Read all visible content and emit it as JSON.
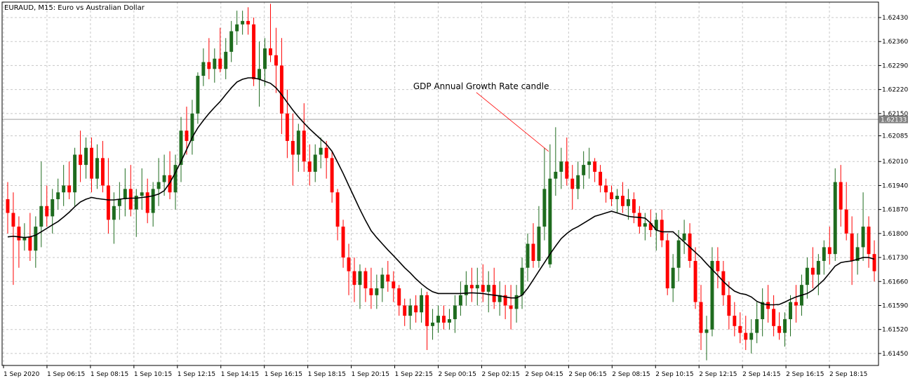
{
  "chart_data": {
    "type": "candlestick",
    "title": "EURAUD, M15:  Euro vs Australian Dollar",
    "colors": {
      "bull": "#1e6b1e",
      "bear": "#ff0000",
      "ma": "#000000",
      "grid": "#c8c8c8",
      "price_line": "#a0a0a0",
      "badge": "#808080"
    },
    "ylim": [
      1.61415,
      1.62475
    ],
    "y_ticks": [
      "1.62430",
      "1.62360",
      "1.62290",
      "1.62220",
      "1.62150",
      "1.62085",
      "1.62010",
      "1.61940",
      "1.61870",
      "1.61800",
      "1.61730",
      "1.61660",
      "1.61590",
      "1.61520",
      "1.61450"
    ],
    "x_ticks": [
      "1 Sep 2020",
      "1 Sep 06:15",
      "1 Sep 08:15",
      "1 Sep 10:15",
      "1 Sep 12:15",
      "1 Sep 14:15",
      "1 Sep 16:15",
      "1 Sep 18:15",
      "1 Sep 20:15",
      "1 Sep 22:15",
      "2 Sep 00:15",
      "2 Sep 02:15",
      "2 Sep 04:15",
      "2 Sep 06:15",
      "2 Sep 08:15",
      "2 Sep 10:15",
      "2 Sep 12:15",
      "2 Sep 14:15",
      "2 Sep 16:15",
      "2 Sep 18:15"
    ],
    "current_price": "1.62133",
    "current_price_value": 1.62133,
    "annotation": {
      "text": "GDP Annual Growth Rate candle",
      "candle_index": 97
    },
    "candles": [
      [
        1.619,
        1.6195,
        1.618,
        1.6186
      ],
      [
        1.6186,
        1.6192,
        1.6165,
        1.6182
      ],
      [
        1.6182,
        1.6185,
        1.617,
        1.6178
      ],
      [
        1.6178,
        1.6183,
        1.6175,
        1.6179
      ],
      [
        1.6179,
        1.6186,
        1.6172,
        1.6175
      ],
      [
        1.6175,
        1.6185,
        1.617,
        1.6182
      ],
      [
        1.6182,
        1.6201,
        1.6176,
        1.6188
      ],
      [
        1.6188,
        1.6194,
        1.6182,
        1.6185
      ],
      [
        1.6185,
        1.6193,
        1.618,
        1.619
      ],
      [
        1.619,
        1.6196,
        1.6187,
        1.6192
      ],
      [
        1.6192,
        1.62,
        1.6188,
        1.6194
      ],
      [
        1.6194,
        1.6201,
        1.619,
        1.6192
      ],
      [
        1.6192,
        1.6205,
        1.6188,
        1.6203
      ],
      [
        1.6203,
        1.621,
        1.6195,
        1.62
      ],
      [
        1.62,
        1.6208,
        1.6196,
        1.6205
      ],
      [
        1.6205,
        1.6208,
        1.6192,
        1.6196
      ],
      [
        1.6196,
        1.6206,
        1.6193,
        1.6202
      ],
      [
        1.6202,
        1.6207,
        1.6192,
        1.6194
      ],
      [
        1.6194,
        1.6202,
        1.618,
        1.6184
      ],
      [
        1.6184,
        1.6192,
        1.6177,
        1.6188
      ],
      [
        1.6188,
        1.6195,
        1.6184,
        1.619
      ],
      [
        1.619,
        1.6199,
        1.6185,
        1.6193
      ],
      [
        1.6193,
        1.62,
        1.6185,
        1.6187
      ],
      [
        1.6187,
        1.6193,
        1.6179,
        1.6191
      ],
      [
        1.6191,
        1.6199,
        1.6187,
        1.6192
      ],
      [
        1.6192,
        1.6196,
        1.6183,
        1.6186
      ],
      [
        1.6186,
        1.6195,
        1.6182,
        1.6193
      ],
      [
        1.6193,
        1.6202,
        1.6188,
        1.6195
      ],
      [
        1.6195,
        1.6203,
        1.6191,
        1.6197
      ],
      [
        1.6197,
        1.6204,
        1.619,
        1.6192
      ],
      [
        1.6192,
        1.6203,
        1.6187,
        1.62
      ],
      [
        1.62,
        1.6214,
        1.6195,
        1.621
      ],
      [
        1.621,
        1.6217,
        1.6203,
        1.6207
      ],
      [
        1.6207,
        1.6219,
        1.6203,
        1.6215
      ],
      [
        1.6215,
        1.6227,
        1.6212,
        1.6226
      ],
      [
        1.6226,
        1.6234,
        1.6223,
        1.623
      ],
      [
        1.623,
        1.6237,
        1.6225,
        1.6228
      ],
      [
        1.6228,
        1.6234,
        1.6224,
        1.6231
      ],
      [
        1.6231,
        1.624,
        1.6227,
        1.6228
      ],
      [
        1.6228,
        1.6237,
        1.6225,
        1.6233
      ],
      [
        1.6233,
        1.6242,
        1.623,
        1.6239
      ],
      [
        1.6239,
        1.6245,
        1.6235,
        1.6241
      ],
      [
        1.6241,
        1.6245,
        1.6238,
        1.6242
      ],
      [
        1.6242,
        1.6246,
        1.6238,
        1.6241
      ],
      [
        1.6241,
        1.6243,
        1.6223,
        1.6225
      ],
      [
        1.6225,
        1.6236,
        1.6217,
        1.6228
      ],
      [
        1.6228,
        1.6237,
        1.6223,
        1.6234
      ],
      [
        1.6234,
        1.6247,
        1.623,
        1.6232
      ],
      [
        1.6232,
        1.624,
        1.6221,
        1.6229
      ],
      [
        1.6229,
        1.6237,
        1.6209,
        1.6215
      ],
      [
        1.6215,
        1.6222,
        1.6202,
        1.6207
      ],
      [
        1.6207,
        1.6215,
        1.6194,
        1.6203
      ],
      [
        1.6203,
        1.6212,
        1.6198,
        1.621
      ],
      [
        1.621,
        1.6218,
        1.6198,
        1.6201
      ],
      [
        1.6201,
        1.6206,
        1.6194,
        1.6198
      ],
      [
        1.6198,
        1.6206,
        1.6195,
        1.6203
      ],
      [
        1.6203,
        1.6208,
        1.6199,
        1.6205
      ],
      [
        1.6205,
        1.6207,
        1.6196,
        1.6202
      ],
      [
        1.6202,
        1.6204,
        1.6189,
        1.6192
      ],
      [
        1.6192,
        1.6193,
        1.6178,
        1.6182
      ],
      [
        1.6182,
        1.6184,
        1.617,
        1.6173
      ],
      [
        1.6173,
        1.6177,
        1.6162,
        1.6169
      ],
      [
        1.6169,
        1.6173,
        1.616,
        1.6165
      ],
      [
        1.6165,
        1.6171,
        1.6158,
        1.6169
      ],
      [
        1.6169,
        1.617,
        1.616,
        1.6164
      ],
      [
        1.6164,
        1.617,
        1.6158,
        1.6162
      ],
      [
        1.6162,
        1.6168,
        1.6158,
        1.6164
      ],
      [
        1.6164,
        1.617,
        1.616,
        1.6168
      ],
      [
        1.6168,
        1.6172,
        1.6163,
        1.6166
      ],
      [
        1.6166,
        1.6169,
        1.616,
        1.6164
      ],
      [
        1.6164,
        1.6165,
        1.6156,
        1.6159
      ],
      [
        1.6159,
        1.6161,
        1.6153,
        1.6156
      ],
      [
        1.6156,
        1.6161,
        1.6152,
        1.6159
      ],
      [
        1.6159,
        1.6162,
        1.6154,
        1.6157
      ],
      [
        1.6157,
        1.6164,
        1.6154,
        1.6162
      ],
      [
        1.6162,
        1.6163,
        1.6146,
        1.6153
      ],
      [
        1.6153,
        1.6158,
        1.6149,
        1.6154
      ],
      [
        1.6154,
        1.6159,
        1.6151,
        1.6156
      ],
      [
        1.6156,
        1.6159,
        1.6152,
        1.6154
      ],
      [
        1.6154,
        1.6158,
        1.6152,
        1.6155
      ],
      [
        1.6155,
        1.6162,
        1.6151,
        1.6159
      ],
      [
        1.6159,
        1.6166,
        1.6156,
        1.6162
      ],
      [
        1.6162,
        1.6169,
        1.6159,
        1.6165
      ],
      [
        1.6165,
        1.617,
        1.616,
        1.6164
      ],
      [
        1.6164,
        1.617,
        1.6159,
        1.6165
      ],
      [
        1.6165,
        1.6171,
        1.616,
        1.6163
      ],
      [
        1.6163,
        1.6169,
        1.6157,
        1.6165
      ],
      [
        1.6165,
        1.617,
        1.6158,
        1.616
      ],
      [
        1.616,
        1.6166,
        1.6156,
        1.6162
      ],
      [
        1.6162,
        1.6165,
        1.6155,
        1.6159
      ],
      [
        1.6159,
        1.6165,
        1.6152,
        1.6158
      ],
      [
        1.6158,
        1.6165,
        1.6154,
        1.6162
      ],
      [
        1.6162,
        1.6173,
        1.6158,
        1.617
      ],
      [
        1.617,
        1.618,
        1.6166,
        1.6177
      ],
      [
        1.6177,
        1.6183,
        1.617,
        1.6172
      ],
      [
        1.6172,
        1.6188,
        1.617,
        1.6182
      ],
      [
        1.6182,
        1.6205,
        1.6178,
        1.6193
      ],
      [
        1.6171,
        1.6206,
        1.617,
        1.6196
      ],
      [
        1.6196,
        1.6211,
        1.6191,
        1.6198
      ],
      [
        1.6198,
        1.6205,
        1.6193,
        1.6201
      ],
      [
        1.6201,
        1.6208,
        1.6194,
        1.6196
      ],
      [
        1.6196,
        1.62,
        1.6187,
        1.6193
      ],
      [
        1.6193,
        1.6201,
        1.619,
        1.6197
      ],
      [
        1.6197,
        1.6204,
        1.6193,
        1.62
      ],
      [
        1.62,
        1.6205,
        1.6196,
        1.6201
      ],
      [
        1.6201,
        1.6202,
        1.6195,
        1.6198
      ],
      [
        1.6198,
        1.62,
        1.6192,
        1.6194
      ],
      [
        1.6194,
        1.6196,
        1.6189,
        1.6192
      ],
      [
        1.6192,
        1.6194,
        1.6188,
        1.619
      ],
      [
        1.619,
        1.6193,
        1.6186,
        1.6191
      ],
      [
        1.6191,
        1.6195,
        1.6186,
        1.6188
      ],
      [
        1.6188,
        1.6193,
        1.6184,
        1.619
      ],
      [
        1.619,
        1.6192,
        1.6183,
        1.6186
      ],
      [
        1.6186,
        1.6188,
        1.618,
        1.6182
      ],
      [
        1.6182,
        1.6186,
        1.6178,
        1.6183
      ],
      [
        1.6183,
        1.6187,
        1.6179,
        1.6181
      ],
      [
        1.6181,
        1.6186,
        1.6175,
        1.6184
      ],
      [
        1.6184,
        1.6187,
        1.6176,
        1.6178
      ],
      [
        1.6178,
        1.618,
        1.6162,
        1.6164
      ],
      [
        1.6164,
        1.6174,
        1.616,
        1.617
      ],
      [
        1.617,
        1.6181,
        1.6166,
        1.6178
      ],
      [
        1.6178,
        1.6184,
        1.6174,
        1.618
      ],
      [
        1.618,
        1.6183,
        1.617,
        1.6172
      ],
      [
        1.6172,
        1.6176,
        1.6158,
        1.616
      ],
      [
        1.616,
        1.6165,
        1.6146,
        1.6151
      ],
      [
        1.6151,
        1.6156,
        1.6143,
        1.6152
      ],
      [
        1.6152,
        1.6176,
        1.615,
        1.6172
      ],
      [
        1.6172,
        1.6176,
        1.6164,
        1.6169
      ],
      [
        1.6169,
        1.6172,
        1.6159,
        1.6162
      ],
      [
        1.6162,
        1.6166,
        1.6152,
        1.6156
      ],
      [
        1.6156,
        1.616,
        1.615,
        1.6153
      ],
      [
        1.6153,
        1.6157,
        1.6148,
        1.6151
      ],
      [
        1.6151,
        1.6156,
        1.6146,
        1.6149
      ],
      [
        1.6149,
        1.6155,
        1.6145,
        1.6151
      ],
      [
        1.6151,
        1.616,
        1.6148,
        1.6155
      ],
      [
        1.6155,
        1.6164,
        1.615,
        1.616
      ],
      [
        1.616,
        1.6165,
        1.6154,
        1.6158
      ],
      [
        1.6158,
        1.6162,
        1.615,
        1.6153
      ],
      [
        1.6153,
        1.6157,
        1.6149,
        1.6151
      ],
      [
        1.6151,
        1.6157,
        1.6147,
        1.6155
      ],
      [
        1.6155,
        1.6162,
        1.615,
        1.616
      ],
      [
        1.616,
        1.6165,
        1.6154,
        1.6159
      ],
      [
        1.6159,
        1.6168,
        1.6156,
        1.6165
      ],
      [
        1.6165,
        1.6173,
        1.6161,
        1.617
      ],
      [
        1.617,
        1.6176,
        1.6164,
        1.6168
      ],
      [
        1.6168,
        1.6174,
        1.6162,
        1.6172
      ],
      [
        1.6172,
        1.6178,
        1.6168,
        1.6176
      ],
      [
        1.6176,
        1.6182,
        1.6171,
        1.6174
      ],
      [
        1.6174,
        1.6199,
        1.6172,
        1.6195
      ],
      [
        1.6195,
        1.62,
        1.6182,
        1.6187
      ],
      [
        1.6187,
        1.6195,
        1.6178,
        1.618
      ],
      [
        1.618,
        1.6185,
        1.6165,
        1.6172
      ],
      [
        1.6172,
        1.618,
        1.6168,
        1.6176
      ],
      [
        1.6176,
        1.6192,
        1.6172,
        1.6182
      ],
      [
        1.6182,
        1.6185,
        1.617,
        1.6174
      ],
      [
        1.6174,
        1.6178,
        1.6166,
        1.6169
      ]
    ],
    "ma": [
      1.6179,
      1.61792,
      1.6179,
      1.61788,
      1.6179,
      1.61795,
      1.61805,
      1.61815,
      1.61825,
      1.61835,
      1.61848,
      1.61862,
      1.61878,
      1.61892,
      1.619,
      1.61905,
      1.61902,
      1.619,
      1.61898,
      1.61898,
      1.619,
      1.61902,
      1.61903,
      1.61903,
      1.61905,
      1.61907,
      1.6191,
      1.61915,
      1.61925,
      1.61948,
      1.61978,
      1.6201,
      1.62045,
      1.6208,
      1.62108,
      1.6213,
      1.6215,
      1.62168,
      1.62185,
      1.62205,
      1.62225,
      1.62242,
      1.6225,
      1.62254,
      1.62254,
      1.6225,
      1.62244,
      1.62238,
      1.62225,
      1.62205,
      1.62182,
      1.6216,
      1.6214,
      1.62122,
      1.62105,
      1.6209,
      1.62075,
      1.6206,
      1.6204,
      1.62008,
      1.61975,
      1.6194,
      1.61905,
      1.6187,
      1.61838,
      1.61808,
      1.61788,
      1.6177,
      1.61752,
      1.61735,
      1.61718,
      1.617,
      1.61685,
      1.61668,
      1.61653,
      1.6164,
      1.6163,
      1.61625,
      1.61625,
      1.61625,
      1.61625,
      1.61625,
      1.61626,
      1.61627,
      1.61626,
      1.61625,
      1.61622,
      1.6162,
      1.61618,
      1.61615,
      1.61612,
      1.61612,
      1.6162,
      1.6164,
      1.61665,
      1.6169,
      1.61715,
      1.6174,
      1.61763,
      1.61785,
      1.618,
      1.61812,
      1.6182,
      1.6183,
      1.6184,
      1.6185,
      1.61855,
      1.6186,
      1.61865,
      1.6186,
      1.61855,
      1.6185,
      1.61848,
      1.61847,
      1.61845,
      1.6183,
      1.6181,
      1.61805,
      1.61805,
      1.61805,
      1.6179,
      1.61775,
      1.6176,
      1.61745,
      1.6173,
      1.61712,
      1.61695,
      1.61678,
      1.6166,
      1.61645,
      1.61632,
      1.61625,
      1.61622,
      1.61615,
      1.61602,
      1.61595,
      1.61592,
      1.61592,
      1.61593,
      1.616,
      1.61608,
      1.61615,
      1.6162,
      1.61625,
      1.61635,
      1.6165,
      1.61665,
      1.61685,
      1.61705,
      1.61715,
      1.61718,
      1.6172,
      1.61725,
      1.6173,
      1.6173,
      1.61725
    ]
  }
}
